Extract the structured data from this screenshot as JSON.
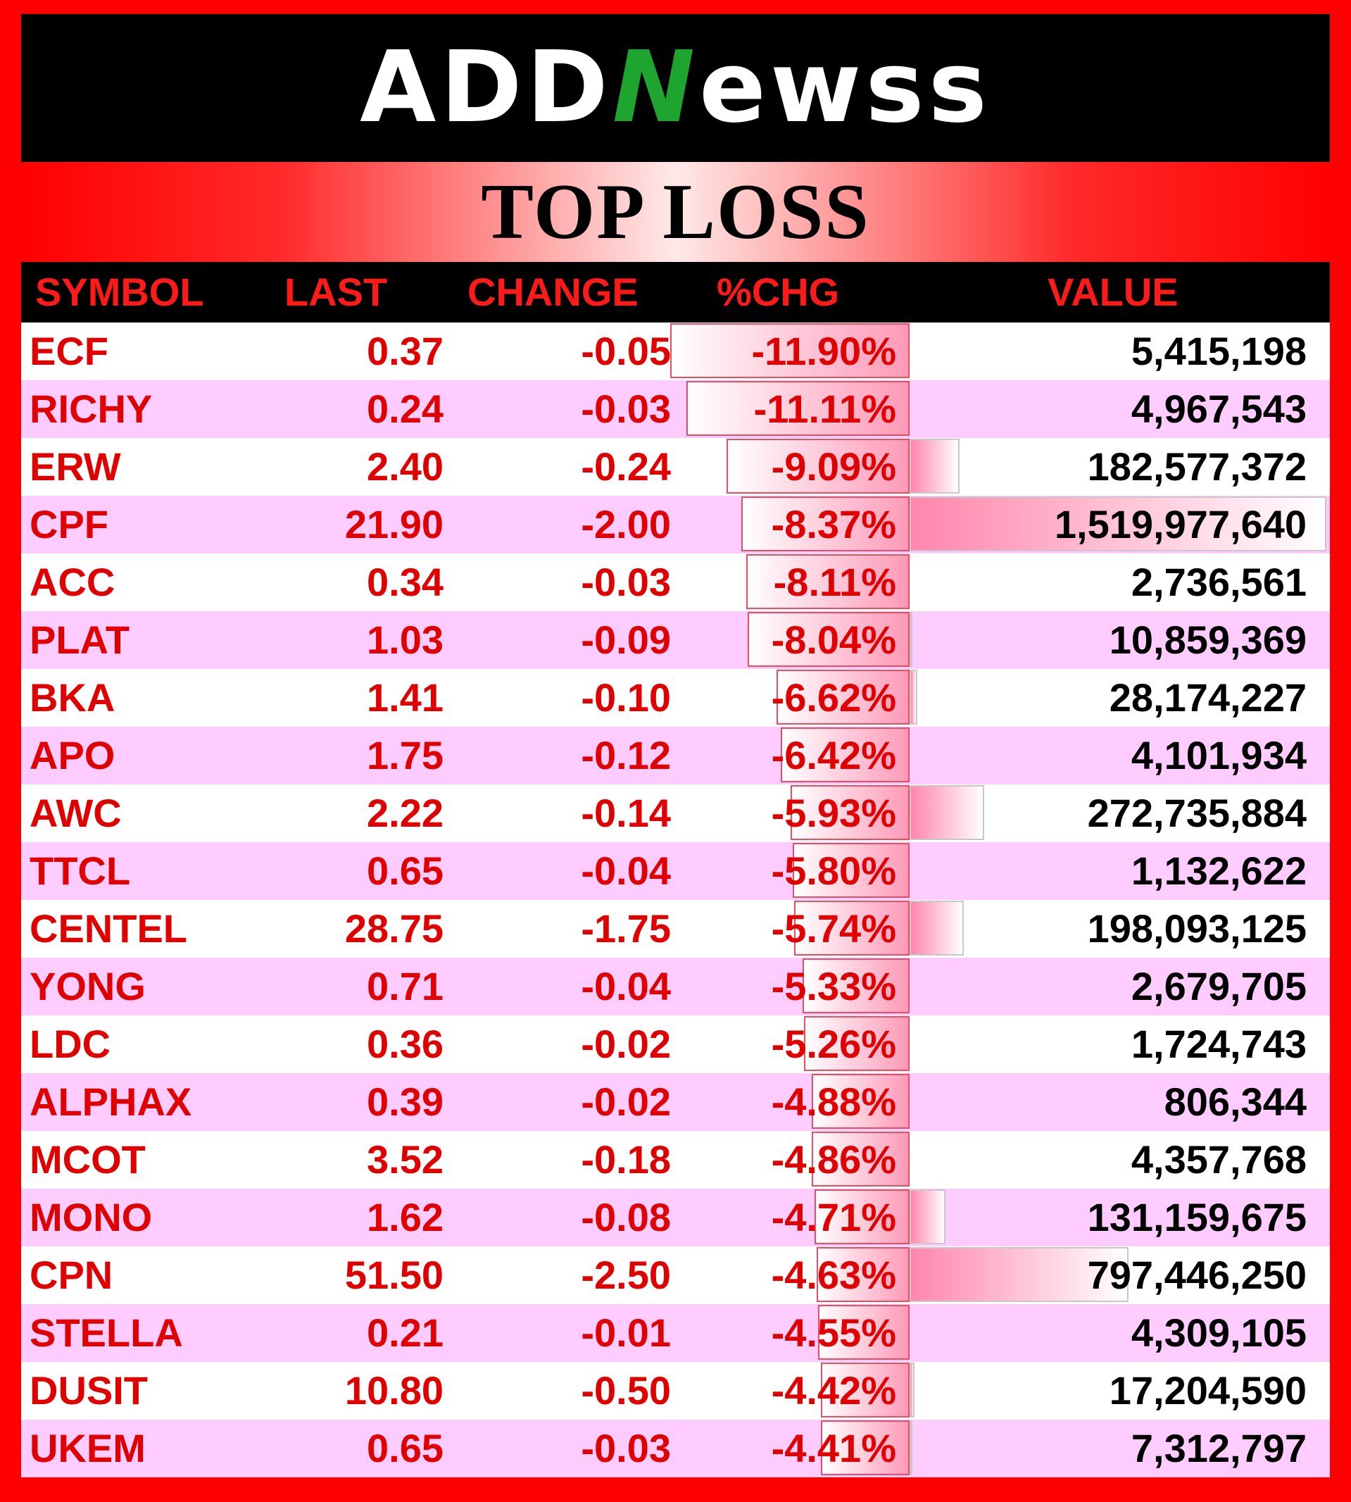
{
  "header": {
    "logo_part1": "ADD",
    "logo_n": "N",
    "logo_part2": "ewss"
  },
  "title": "TOP LOSS",
  "columns": {
    "symbol": "SYMBOL",
    "last": "LAST",
    "change": "CHANGE",
    "pct": "%CHG",
    "value": "VALUE"
  },
  "rows": [
    {
      "symbol": "ECF",
      "last": "0.37",
      "change": "-0.05",
      "pct": "-11.90%",
      "value": "5,415,198",
      "pct_num": 11.9,
      "value_num": 5415198
    },
    {
      "symbol": "RICHY",
      "last": "0.24",
      "change": "-0.03",
      "pct": "-11.11%",
      "value": "4,967,543",
      "pct_num": 11.11,
      "value_num": 4967543
    },
    {
      "symbol": "ERW",
      "last": "2.40",
      "change": "-0.24",
      "pct": "-9.09%",
      "value": "182,577,372",
      "pct_num": 9.09,
      "value_num": 182577372
    },
    {
      "symbol": "CPF",
      "last": "21.90",
      "change": "-2.00",
      "pct": "-8.37%",
      "value": "1,519,977,640",
      "pct_num": 8.37,
      "value_num": 1519977640
    },
    {
      "symbol": "ACC",
      "last": "0.34",
      "change": "-0.03",
      "pct": "-8.11%",
      "value": "2,736,561",
      "pct_num": 8.11,
      "value_num": 2736561
    },
    {
      "symbol": "PLAT",
      "last": "1.03",
      "change": "-0.09",
      "pct": "-8.04%",
      "value": "10,859,369",
      "pct_num": 8.04,
      "value_num": 10859369
    },
    {
      "symbol": "BKA",
      "last": "1.41",
      "change": "-0.10",
      "pct": "-6.62%",
      "value": "28,174,227",
      "pct_num": 6.62,
      "value_num": 28174227
    },
    {
      "symbol": "APO",
      "last": "1.75",
      "change": "-0.12",
      "pct": "-6.42%",
      "value": "4,101,934",
      "pct_num": 6.42,
      "value_num": 4101934
    },
    {
      "symbol": "AWC",
      "last": "2.22",
      "change": "-0.14",
      "pct": "-5.93%",
      "value": "272,735,884",
      "pct_num": 5.93,
      "value_num": 272735884
    },
    {
      "symbol": "TTCL",
      "last": "0.65",
      "change": "-0.04",
      "pct": "-5.80%",
      "value": "1,132,622",
      "pct_num": 5.8,
      "value_num": 1132622
    },
    {
      "symbol": "CENTEL",
      "last": "28.75",
      "change": "-1.75",
      "pct": "-5.74%",
      "value": "198,093,125",
      "pct_num": 5.74,
      "value_num": 198093125
    },
    {
      "symbol": "YONG",
      "last": "0.71",
      "change": "-0.04",
      "pct": "-5.33%",
      "value": "2,679,705",
      "pct_num": 5.33,
      "value_num": 2679705
    },
    {
      "symbol": "LDC",
      "last": "0.36",
      "change": "-0.02",
      "pct": "-5.26%",
      "value": "1,724,743",
      "pct_num": 5.26,
      "value_num": 1724743
    },
    {
      "symbol": "ALPHAX",
      "last": "0.39",
      "change": "-0.02",
      "pct": "-4.88%",
      "value": "806,344",
      "pct_num": 4.88,
      "value_num": 806344
    },
    {
      "symbol": "MCOT",
      "last": "3.52",
      "change": "-0.18",
      "pct": "-4.86%",
      "value": "4,357,768",
      "pct_num": 4.86,
      "value_num": 4357768
    },
    {
      "symbol": "MONO",
      "last": "1.62",
      "change": "-0.08",
      "pct": "-4.71%",
      "value": "131,159,675",
      "pct_num": 4.71,
      "value_num": 131159675
    },
    {
      "symbol": "CPN",
      "last": "51.50",
      "change": "-2.50",
      "pct": "-4.63%",
      "value": "797,446,250",
      "pct_num": 4.63,
      "value_num": 797446250
    },
    {
      "symbol": "STELLA",
      "last": "0.21",
      "change": "-0.01",
      "pct": "-4.55%",
      "value": "4,309,105",
      "pct_num": 4.55,
      "value_num": 4309105
    },
    {
      "symbol": "DUSIT",
      "last": "10.80",
      "change": "-0.50",
      "pct": "-4.42%",
      "value": "17,204,590",
      "pct_num": 4.42,
      "value_num": 17204590
    },
    {
      "symbol": "UKEM",
      "last": "0.65",
      "change": "-0.03",
      "pct": "-4.41%",
      "value": "7,312,797",
      "pct_num": 4.41,
      "value_num": 7312797
    }
  ],
  "colors": {
    "frame": "#ff0000",
    "header_bg": "#000000",
    "text_red": "#e00000",
    "row_alt": "#ffccff",
    "logo_green": "#1ea52f"
  }
}
